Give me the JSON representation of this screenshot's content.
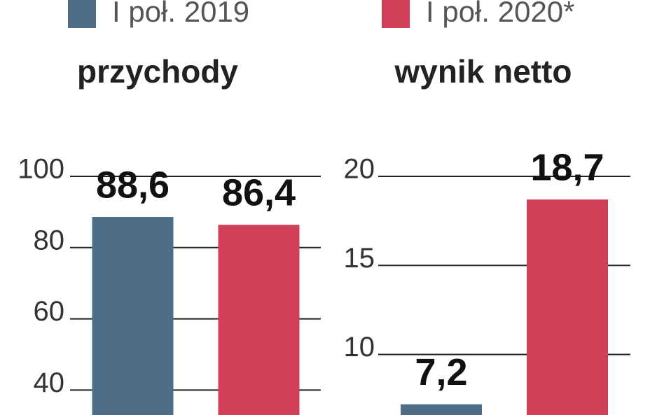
{
  "legend": [
    {
      "name": "I poł. 2019",
      "color": "#4e6d86"
    },
    {
      "name": "I poł. 2020*",
      "color": "#d04058"
    }
  ],
  "chart_data": [
    {
      "type": "bar",
      "title": "przychody",
      "values": [
        88.6,
        86.4
      ],
      "value_labels": [
        "88,6",
        "86,4"
      ],
      "ylim": [
        33,
        100
      ],
      "yticks": [
        40,
        60,
        80,
        100
      ],
      "grid": true
    },
    {
      "type": "bar",
      "title": "wynik netto",
      "values": [
        7.2,
        18.7
      ],
      "value_labels": [
        "7,2",
        "18,7"
      ],
      "ylim": [
        6.6,
        20
      ],
      "yticks": [
        10,
        15,
        20
      ],
      "grid": true
    }
  ]
}
